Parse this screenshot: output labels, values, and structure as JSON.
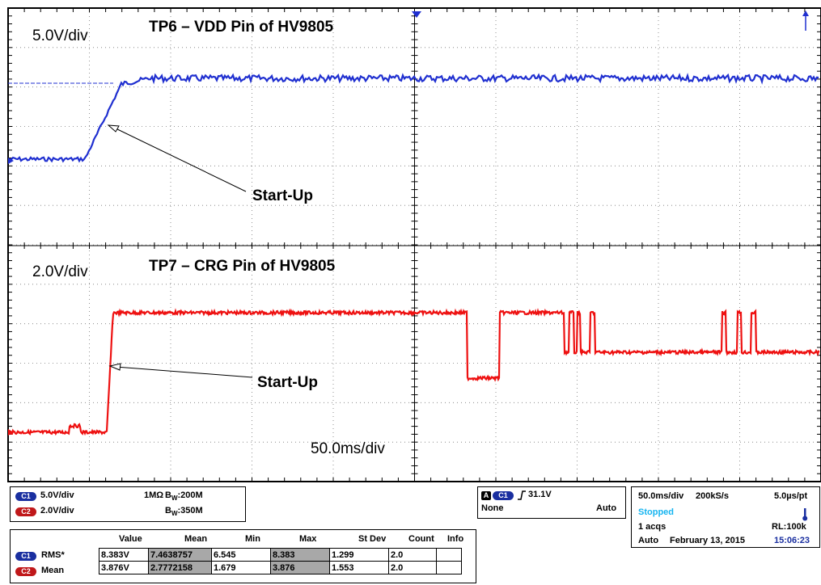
{
  "colors": {
    "ch1": "#1f2fd0",
    "ch2": "#ee1111",
    "ch1_pill": "#1a2fa0",
    "ch2_pill": "#c0181a",
    "trigger_marker": "#1f2fd0",
    "stopped": "#14b4f0",
    "timestamp": "#1a2fa0"
  },
  "ch1_panel": {
    "scale": "5.0V/div",
    "title": "TP6 – VDD Pin of HV9805",
    "annotation": "Start-Up"
  },
  "ch2_panel": {
    "scale": "2.0V/div",
    "title": "TP7 – CRG Pin of HV9805",
    "annotation": "Start-Up",
    "timebase": "50.0ms/div"
  },
  "channel_info": {
    "ch1_badge": "C1",
    "ch1_scale": "5.0V/div",
    "ch1_impedance": "1MΩ",
    "ch1_bw": "B",
    "ch1_bw_sub": "W",
    "ch1_bw_value": ":200M",
    "ch2_badge": "C2",
    "ch2_scale": "2.0V/div",
    "ch2_bw": "B",
    "ch2_bw_sub": "W",
    "ch2_bw_value": ":350M"
  },
  "trigger": {
    "a_badge": "A",
    "ch_badge": "C1",
    "level": "31.1V",
    "coupling": "None",
    "mode": "Auto"
  },
  "acquisition": {
    "timebase": "50.0ms/div",
    "sample_rate": "200kS/s",
    "resolution": "5.0µs/pt",
    "state": "Stopped",
    "acqs": "1 acqs",
    "record_length": "RL:100k",
    "mode": "Auto",
    "date": "February 13, 2015",
    "time": "15:06:23"
  },
  "measurements": {
    "headers": [
      "Value",
      "Mean",
      "Min",
      "Max",
      "St Dev",
      "Count",
      "Info"
    ],
    "rows": [
      {
        "badge": "C1",
        "name": "RMS*",
        "value": "8.383V",
        "mean": "7.4638757",
        "min": "6.545",
        "max": "8.383",
        "stdev": "1.299",
        "count": "2.0",
        "info": ""
      },
      {
        "badge": "C2",
        "name": "Mean",
        "value": "3.876V",
        "mean": "2.7772158",
        "min": "1.679",
        "max": "3.876",
        "stdev": "1.553",
        "count": "2.0",
        "info": ""
      }
    ]
  }
}
